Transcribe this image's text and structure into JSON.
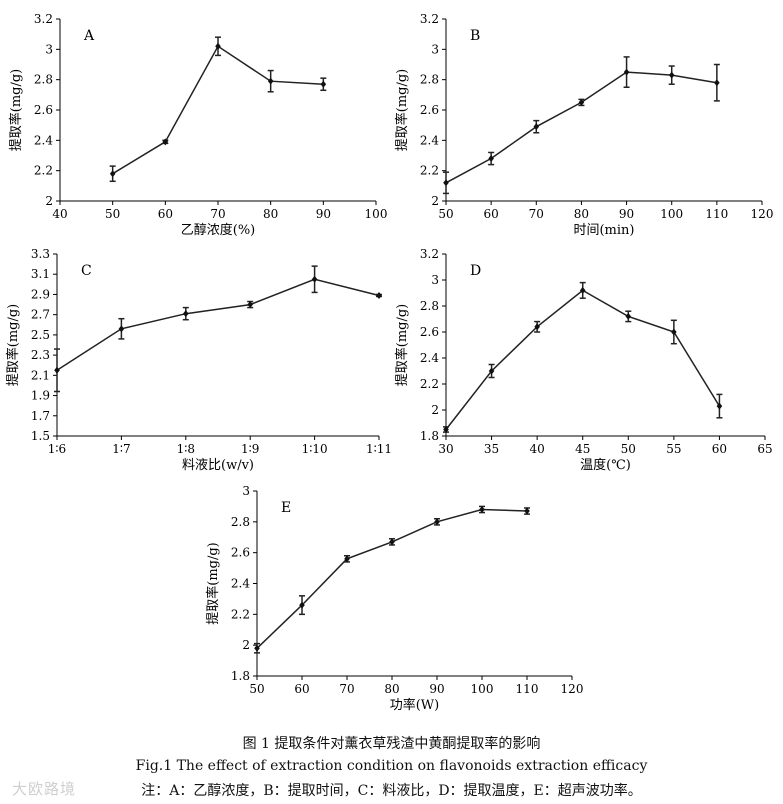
{
  "figure": {
    "caption_cn": "图 1   提取条件对薰衣草残渣中黄酮提取率的影响",
    "caption_en": "Fig.1   The effect of extraction condition on flavonoids extraction efficacy",
    "note": "注：A：乙醇浓度，B：提取时间，C：料液比，D：提取温度，E：超声波功率。",
    "watermark": "大欧路境"
  },
  "chart_data": [
    {
      "id": "A",
      "type": "line",
      "panel_label": "A",
      "xlabel": "乙醇浓度(%)",
      "ylabel": "提取率(mg/g)",
      "xlim": [
        40,
        100
      ],
      "ylim": [
        2,
        3.2
      ],
      "xticks": [
        40,
        50,
        60,
        70,
        80,
        90,
        100
      ],
      "xtick_labels": [
        "40",
        "50",
        "60",
        "70",
        "80",
        "90",
        "100"
      ],
      "yticks": [
        2,
        2.2,
        2.4,
        2.6,
        2.8,
        3,
        3.2
      ],
      "ytick_labels": [
        "2",
        "2.2",
        "2.4",
        "2.6",
        "2.8",
        "3",
        "3.2"
      ],
      "x": [
        50,
        60,
        70,
        80,
        90
      ],
      "y": [
        2.18,
        2.39,
        3.02,
        2.79,
        2.77
      ],
      "err": [
        0.05,
        0.01,
        0.06,
        0.07,
        0.04
      ]
    },
    {
      "id": "B",
      "type": "line",
      "panel_label": "B",
      "xlabel": "时间(min)",
      "ylabel": "提取率(mg/g)",
      "xlim": [
        50,
        120
      ],
      "ylim": [
        2,
        3.2
      ],
      "xticks": [
        50,
        60,
        70,
        80,
        90,
        100,
        110,
        120
      ],
      "xtick_labels": [
        "50",
        "60",
        "70",
        "80",
        "90",
        "100",
        "110",
        "120"
      ],
      "yticks": [
        2,
        2.2,
        2.4,
        2.6,
        2.8,
        3,
        3.2
      ],
      "ytick_labels": [
        "2",
        "2.2",
        "2.4",
        "2.6",
        "2.8",
        "3",
        "3.2"
      ],
      "x": [
        50,
        60,
        70,
        80,
        90,
        100,
        110
      ],
      "y": [
        2.12,
        2.28,
        2.49,
        2.65,
        2.85,
        2.83,
        2.78
      ],
      "err": [
        0.07,
        0.04,
        0.04,
        0.02,
        0.1,
        0.06,
        0.12
      ]
    },
    {
      "id": "C",
      "type": "line",
      "panel_label": "C",
      "xlabel": "料液比(w/v)",
      "ylabel": "提取率(mg/g)",
      "xlim": [
        0,
        5
      ],
      "ylim": [
        1.5,
        3.3
      ],
      "xticks": [
        0,
        1,
        2,
        3,
        4,
        5
      ],
      "xtick_labels": [
        "1∶6",
        "1∶7",
        "1∶8",
        "1∶9",
        "1∶10",
        "1∶11"
      ],
      "yticks": [
        1.5,
        1.7,
        1.9,
        2.1,
        2.3,
        2.5,
        2.7,
        2.9,
        3.1,
        3.3
      ],
      "ytick_labels": [
        "1.5",
        "1.7",
        "1.9",
        "2.1",
        "2.3",
        "2.5",
        "2.7",
        "2.9",
        "3.1",
        "3.3"
      ],
      "x": [
        0,
        1,
        2,
        3,
        4,
        5
      ],
      "y": [
        2.15,
        2.56,
        2.71,
        2.8,
        3.05,
        2.89
      ],
      "err": [
        0.21,
        0.1,
        0.06,
        0.03,
        0.13,
        0.01
      ]
    },
    {
      "id": "D",
      "type": "line",
      "panel_label": "D",
      "xlabel": "温度(℃)",
      "ylabel": "提取率(mg/g)",
      "xlim": [
        30,
        65
      ],
      "ylim": [
        1.8,
        3.2
      ],
      "xticks": [
        30,
        35,
        40,
        45,
        50,
        55,
        60,
        65
      ],
      "xtick_labels": [
        "30",
        "35",
        "40",
        "45",
        "50",
        "55",
        "60",
        "65"
      ],
      "yticks": [
        1.8,
        2,
        2.2,
        2.4,
        2.6,
        2.8,
        3,
        3.2
      ],
      "ytick_labels": [
        "1.8",
        "2",
        "2.2",
        "2.4",
        "2.6",
        "2.8",
        "3",
        "3.2"
      ],
      "x": [
        30,
        35,
        40,
        45,
        50,
        55,
        60
      ],
      "y": [
        1.85,
        2.3,
        2.64,
        2.92,
        2.72,
        2.6,
        2.03
      ],
      "err": [
        0.02,
        0.05,
        0.04,
        0.06,
        0.04,
        0.09,
        0.09
      ]
    },
    {
      "id": "E",
      "type": "line",
      "panel_label": "E",
      "xlabel": "功率(W)",
      "ylabel": "提取率(mg/g)",
      "xlim": [
        50,
        120
      ],
      "ylim": [
        1.8,
        3
      ],
      "xticks": [
        50,
        60,
        70,
        80,
        90,
        100,
        110,
        120
      ],
      "xtick_labels": [
        "50",
        "60",
        "70",
        "80",
        "90",
        "100",
        "110",
        "120"
      ],
      "yticks": [
        1.8,
        2,
        2.2,
        2.4,
        2.6,
        2.8,
        3
      ],
      "ytick_labels": [
        "1.8",
        "2",
        "2.2",
        "2.4",
        "2.6",
        "2.8",
        "3"
      ],
      "x": [
        50,
        60,
        70,
        80,
        90,
        100,
        110
      ],
      "y": [
        1.98,
        2.26,
        2.56,
        2.67,
        2.8,
        2.88,
        2.87
      ],
      "err": [
        0.03,
        0.06,
        0.02,
        0.02,
        0.02,
        0.02,
        0.02
      ]
    }
  ]
}
